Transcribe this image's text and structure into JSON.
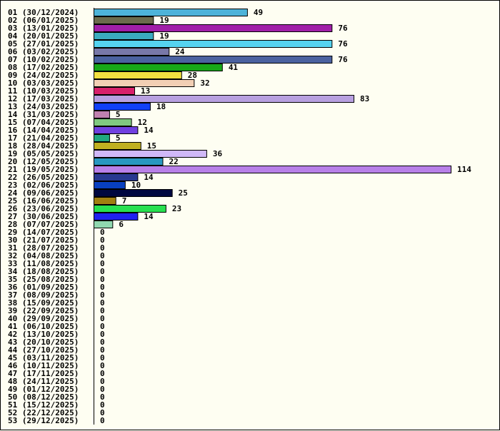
{
  "chart_data": {
    "type": "bar",
    "orientation": "horizontal",
    "grid": false,
    "legend": "none",
    "categories": [
      "01 (30/12/2024)",
      "02 (06/01/2025)",
      "03 (13/01/2025)",
      "04 (20/01/2025)",
      "05 (27/01/2025)",
      "06 (03/02/2025)",
      "07 (10/02/2025)",
      "08 (17/02/2025)",
      "09 (24/02/2025)",
      "10 (03/03/2025)",
      "11 (10/03/2025)",
      "12 (17/03/2025)",
      "13 (24/03/2025)",
      "14 (31/03/2025)",
      "15 (07/04/2025)",
      "16 (14/04/2025)",
      "17 (21/04/2025)",
      "18 (28/04/2025)",
      "19 (05/05/2025)",
      "20 (12/05/2025)",
      "21 (19/05/2025)",
      "22 (26/05/2025)",
      "23 (02/06/2025)",
      "24 (09/06/2025)",
      "25 (16/06/2025)",
      "26 (23/06/2025)",
      "27 (30/06/2025)",
      "28 (07/07/2025)",
      "29 (14/07/2025)",
      "30 (21/07/2025)",
      "31 (28/07/2025)",
      "32 (04/08/2025)",
      "33 (11/08/2025)",
      "34 (18/08/2025)",
      "35 (25/08/2025)",
      "36 (01/09/2025)",
      "37 (08/09/2025)",
      "38 (15/09/2025)",
      "39 (22/09/2025)",
      "40 (29/09/2025)",
      "41 (06/10/2025)",
      "42 (13/10/2025)",
      "43 (20/10/2025)",
      "44 (27/10/2025)",
      "45 (03/11/2025)",
      "46 (10/11/2025)",
      "47 (17/11/2025)",
      "48 (24/11/2025)",
      "49 (01/12/2025)",
      "50 (08/12/2025)",
      "51 (15/12/2025)",
      "52 (22/12/2025)",
      "53 (29/12/2025)"
    ],
    "values": [
      49,
      19,
      76,
      19,
      76,
      24,
      76,
      41,
      28,
      32,
      13,
      83,
      18,
      5,
      12,
      14,
      5,
      15,
      36,
      22,
      114,
      14,
      10,
      25,
      7,
      23,
      14,
      6,
      0,
      0,
      0,
      0,
      0,
      0,
      0,
      0,
      0,
      0,
      0,
      0,
      0,
      0,
      0,
      0,
      0,
      0,
      0,
      0,
      0,
      0,
      0,
      0,
      0
    ],
    "colors": [
      "#4db3d9",
      "#6b6b4c",
      "#a01fa8",
      "#3aacbf",
      "#55d3f0",
      "#7878a8",
      "#4b62a0",
      "#18a818",
      "#f3e040",
      "#f2cfb4",
      "#d8206a",
      "#b8a0e0",
      "#1040f8",
      "#c080b0",
      "#80c880",
      "#7040e0",
      "#20a880",
      "#c0b020",
      "#d0b8f8",
      "#2898c0",
      "#b880e8",
      "#283890",
      "#0840c0",
      "#000840",
      "#a08010",
      "#28e050",
      "#2020f0",
      "#90d8b0"
    ],
    "xlim": [
      0,
      114
    ]
  }
}
